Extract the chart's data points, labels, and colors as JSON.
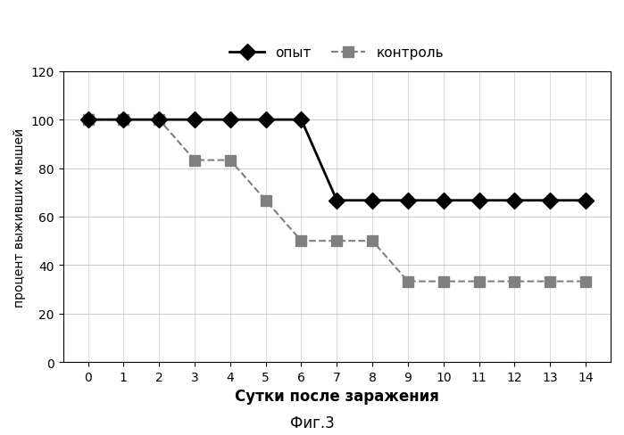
{
  "x": [
    0,
    1,
    2,
    3,
    4,
    5,
    6,
    7,
    8,
    9,
    10,
    11,
    12,
    13,
    14
  ],
  "opyt": [
    100,
    100,
    100,
    100,
    100,
    100,
    100,
    66.7,
    66.7,
    66.7,
    66.7,
    66.7,
    66.7,
    66.7,
    66.7
  ],
  "kontrol": [
    100,
    100,
    100,
    83.3,
    83.3,
    66.7,
    50,
    50,
    50,
    33.3,
    33.3,
    33.3,
    33.3,
    33.3,
    33.3
  ],
  "opyt_label": "опыт",
  "kontrol_label": "контроль",
  "xlabel": "Сутки после заражения",
  "ylabel": "процент выживших мышей",
  "caption": "Фиг.3",
  "ylim": [
    0,
    120
  ],
  "yticks": [
    0,
    20,
    40,
    60,
    80,
    100,
    120
  ],
  "xticks": [
    0,
    1,
    2,
    3,
    4,
    5,
    6,
    7,
    8,
    9,
    10,
    11,
    12,
    13,
    14
  ],
  "opyt_color": "#000000",
  "kontrol_color": "#808080",
  "bg_color": "#ffffff",
  "grid_color": "#cccccc",
  "opyt_marker": "D",
  "kontrol_marker": "s",
  "linewidth_opyt": 2.0,
  "linewidth_kontrol": 1.5,
  "markersize_opyt": 9,
  "markersize_kontrol": 8
}
